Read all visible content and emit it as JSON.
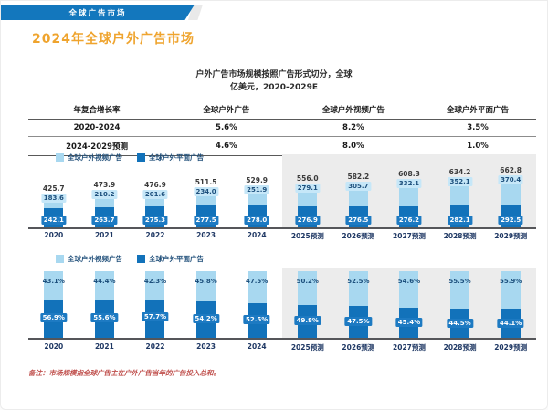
{
  "header": {
    "banner_label": "全球广告市场"
  },
  "title": "2024年全球户外广告市场",
  "subtitle": {
    "line1": "户外广告市场规模按照广告形式切分，全球",
    "line2": "亿美元，2020-2029E"
  },
  "table": {
    "headers": [
      "年复合增长率",
      "全球户外广告",
      "全球户外视频广告",
      "全球户外平面广告"
    ],
    "rows": [
      [
        "2020-2024",
        "5.6%",
        "8.2%",
        "3.5%"
      ],
      [
        "2024-2029预测",
        "4.6%",
        "8.0%",
        "1.0%"
      ]
    ]
  },
  "legend": {
    "video_label": "全球户外视频广告",
    "print_label": "全球户外平面广告"
  },
  "colors": {
    "banner_blue": "#1377bd",
    "title_orange": "#efa42e",
    "video_light_blue": "#a8d8f0",
    "print_dark_blue": "#1272ba",
    "forecast_panel_gray": "#ececec",
    "footnote_red": "#c0504d"
  },
  "chart_data": [
    {
      "type": "bar",
      "subtype": "stacked",
      "title": "户外广告市场规模按照广告形式切分，全球，亿美元，2020-2029E",
      "ylabel": "亿美元",
      "ylim": [
        0,
        700
      ],
      "grid": false,
      "legend_position": "top-left",
      "categories": [
        "2020",
        "2021",
        "2022",
        "2023",
        "2024",
        "2025预测",
        "2026预测",
        "2027预测",
        "2028预测",
        "2029预测"
      ],
      "series": [
        {
          "name": "全球户外视频广告",
          "values": [
            183.6,
            210.2,
            201.6,
            234.0,
            251.9,
            279.1,
            305.7,
            332.1,
            352.1,
            370.4
          ]
        },
        {
          "name": "全球户外平面广告",
          "values": [
            242.1,
            263.7,
            275.3,
            277.5,
            278.0,
            276.9,
            276.5,
            276.2,
            282.1,
            292.5
          ]
        }
      ],
      "totals": [
        425.7,
        473.9,
        476.9,
        511.5,
        529.9,
        556.0,
        582.2,
        608.3,
        634.2,
        662.8
      ],
      "forecast_from_index": 5
    },
    {
      "type": "bar",
      "subtype": "stacked-100",
      "title": "户外广告市场份额占比，按广告形式切分，%，2020-2029E",
      "ylim": [
        0,
        100
      ],
      "value_suffix": "%",
      "grid": false,
      "legend_position": "top-left",
      "categories": [
        "2020",
        "2021",
        "2022",
        "2023",
        "2024",
        "2025预测",
        "2026预测",
        "2027预测",
        "2028预测",
        "2029预测"
      ],
      "series": [
        {
          "name": "全球户外视频广告",
          "values": [
            43.1,
            44.4,
            42.3,
            45.8,
            47.5,
            50.2,
            52.5,
            54.6,
            55.5,
            55.9
          ]
        },
        {
          "name": "全球户外平面广告",
          "values": [
            56.9,
            55.6,
            57.7,
            54.2,
            52.5,
            49.8,
            47.5,
            45.4,
            44.5,
            44.1
          ]
        }
      ],
      "forecast_from_index": 5
    }
  ],
  "footnote": "备注：市场规模指全球广告主在户外广告当年的广告投入总和。"
}
